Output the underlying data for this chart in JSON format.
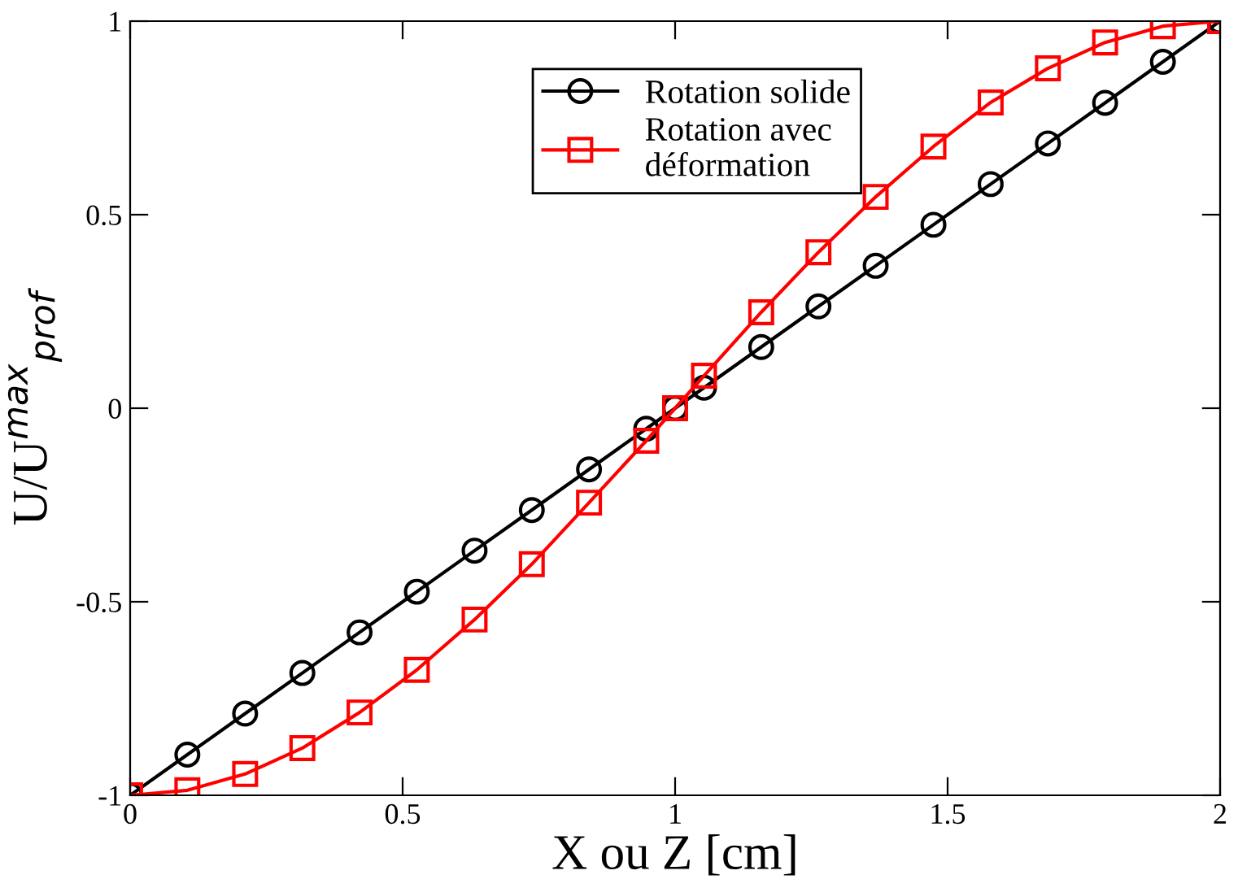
{
  "chart_data": {
    "type": "line",
    "xlabel": "X ou Z [cm]",
    "ylabel": "U/U$^{max}$$_{prof}$",
    "x": [
      0,
      0.105,
      0.211,
      0.316,
      0.421,
      0.526,
      0.632,
      0.737,
      0.842,
      0.947,
      1,
      1.053,
      1.158,
      1.263,
      1.368,
      1.474,
      1.579,
      1.684,
      1.789,
      1.895,
      2
    ],
    "series": [
      {
        "name": "Rotation solide",
        "color": "#000000",
        "marker": "circle",
        "values": [
          -1,
          -0.895,
          -0.789,
          -0.684,
          -0.579,
          -0.474,
          -0.368,
          -0.263,
          -0.158,
          -0.053,
          0,
          0.053,
          0.158,
          0.263,
          0.368,
          0.474,
          0.579,
          0.684,
          0.789,
          0.895,
          1
        ]
      },
      {
        "name": "Rotation avec\ndéformation",
        "color": "#ff0000",
        "marker": "square",
        "values": [
          -1,
          -0.987,
          -0.945,
          -0.878,
          -0.786,
          -0.676,
          -0.546,
          -0.403,
          -0.244,
          -0.084,
          0,
          0.084,
          0.248,
          0.403,
          0.546,
          0.676,
          0.79,
          0.878,
          0.945,
          0.987,
          1
        ]
      }
    ],
    "xlim": [
      0,
      2
    ],
    "xticks": [
      0,
      0.5,
      1,
      1.5,
      2
    ],
    "ylim": [
      -1,
      1
    ],
    "yticks": [
      -1,
      -0.5,
      0,
      0.5,
      1
    ],
    "grid": false,
    "legend": "top",
    "line_style": "solid"
  }
}
